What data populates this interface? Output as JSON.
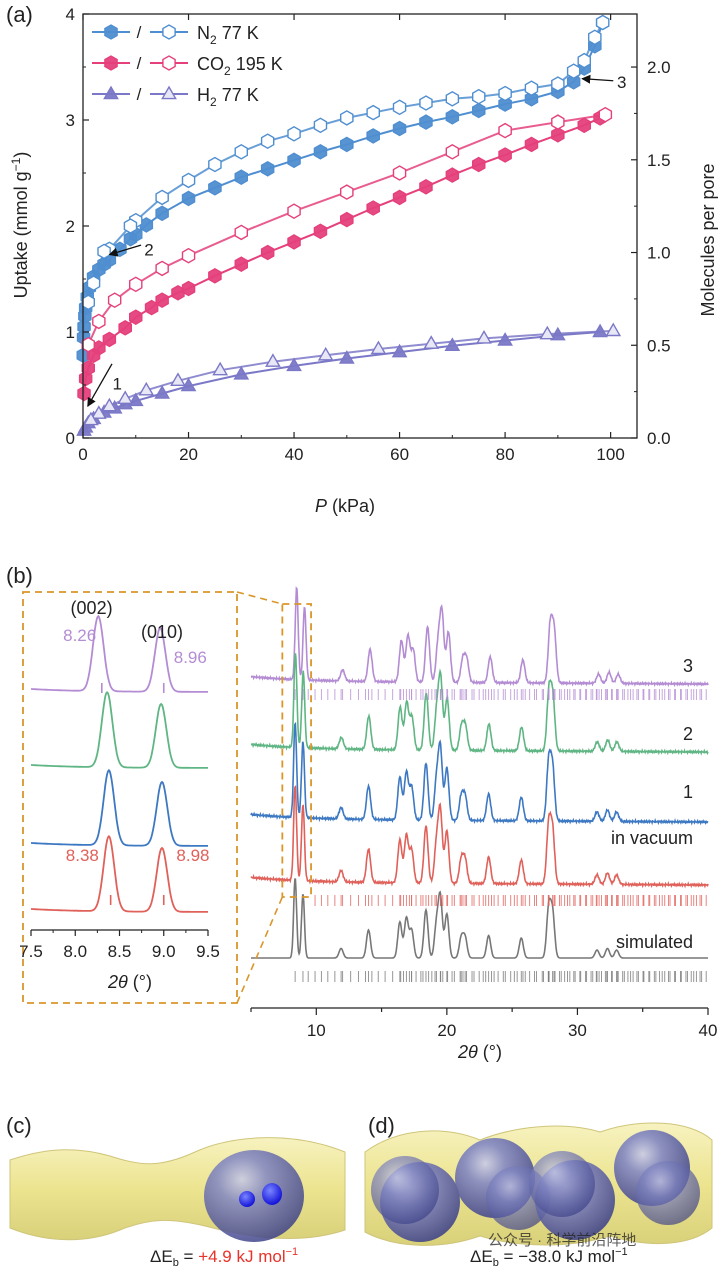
{
  "panels": {
    "a": "(a)",
    "b": "(b)",
    "c": "(c)",
    "d": "(d)"
  },
  "colors": {
    "n2": "#4f8ed0",
    "co2": "#e5407b",
    "h2": "#7b78c7",
    "inset_frame": "#d9962a",
    "trace_3": "#b48cd4",
    "trace_2": "#5fb583",
    "trace_1": "#3d78c2",
    "trace_vacuum": "#e0605a",
    "trace_sim": "#777777",
    "tunnel": "#f2ec9c",
    "sphere": "#6e74b5",
    "highlight_red": "#e8322a"
  },
  "chart_data": [
    {
      "type": "line",
      "panel": "a",
      "xlabel_italic": "P",
      "xlabel_unit": " (kPa)",
      "ylabel_left_main": "Uptake (mmol g",
      "ylabel_left_sup": "−1",
      "ylabel_left_end": ")",
      "ylabel_right": "Molecules per pore",
      "xlim": [
        0,
        105
      ],
      "ylim": [
        0,
        4
      ],
      "y2lim": [
        0,
        2.286
      ],
      "xticks": [
        0,
        20,
        40,
        60,
        80,
        100
      ],
      "yticks": [
        0,
        1,
        2,
        3,
        4
      ],
      "y2ticks": [
        "0.0",
        "0.5",
        "1.0",
        "1.5",
        "2.0"
      ],
      "y2tick_values": [
        0,
        0.5,
        1.0,
        1.5,
        2.0
      ],
      "legend": [
        {
          "sep": "/",
          "main": "N",
          "sub": "2",
          "rest": " 77 K",
          "color_key": "n2",
          "marker": "hexagon"
        },
        {
          "sep": "/",
          "main": "CO",
          "sub": "2",
          "rest": " 195 K",
          "color_key": "co2",
          "marker": "hexagon"
        },
        {
          "sep": "/",
          "main": "H",
          "sub": "2",
          "rest": " 77 K",
          "color_key": "h2",
          "marker": "triangle"
        }
      ],
      "series": [
        {
          "name": "N2 77 K adsorption",
          "color_key": "n2",
          "filled": true,
          "marker": "hexagon",
          "x": [
            0.05,
            0.1,
            0.2,
            0.35,
            0.5,
            0.8,
            1.2,
            2,
            3,
            4,
            5,
            7,
            9,
            10,
            12,
            15,
            20,
            25,
            30,
            35,
            40,
            45,
            50,
            55,
            60,
            65,
            70,
            75,
            80,
            85,
            90,
            93,
            95,
            97,
            98.5
          ],
          "y": [
            0.78,
            0.95,
            1.05,
            1.15,
            1.23,
            1.33,
            1.42,
            1.52,
            1.59,
            1.64,
            1.68,
            1.78,
            1.88,
            1.92,
            2.01,
            2.12,
            2.26,
            2.36,
            2.46,
            2.54,
            2.62,
            2.7,
            2.77,
            2.85,
            2.92,
            2.98,
            3.03,
            3.09,
            3.15,
            3.2,
            3.27,
            3.36,
            3.49,
            3.7,
            3.92
          ]
        },
        {
          "name": "N2 77 K desorption",
          "color_key": "n2",
          "filled": false,
          "marker": "hexagon",
          "x": [
            98.5,
            97,
            95,
            93,
            90,
            85,
            80,
            75,
            70,
            65,
            60,
            55,
            50,
            45,
            40,
            35,
            30,
            25,
            20,
            15,
            10,
            9,
            5,
            4,
            2,
            1
          ],
          "y": [
            3.92,
            3.78,
            3.56,
            3.46,
            3.34,
            3.3,
            3.25,
            3.22,
            3.2,
            3.16,
            3.12,
            3.07,
            3.02,
            2.95,
            2.87,
            2.8,
            2.7,
            2.58,
            2.43,
            2.27,
            2.05,
            2.0,
            1.78,
            1.76,
            1.46,
            1.28
          ]
        },
        {
          "name": "CO2 195 K adsorption",
          "color_key": "co2",
          "filled": true,
          "marker": "hexagon",
          "x": [
            0.2,
            0.5,
            1,
            2,
            3,
            5,
            8,
            10,
            13,
            15,
            18,
            20,
            25,
            30,
            35,
            40,
            45,
            50,
            55,
            60,
            65,
            70,
            75,
            80,
            85,
            90,
            95,
            98
          ],
          "y": [
            0.42,
            0.56,
            0.66,
            0.78,
            0.85,
            0.93,
            1.04,
            1.14,
            1.23,
            1.3,
            1.37,
            1.41,
            1.53,
            1.64,
            1.75,
            1.85,
            1.95,
            2.06,
            2.17,
            2.27,
            2.37,
            2.48,
            2.58,
            2.67,
            2.77,
            2.86,
            2.95,
            3.02
          ]
        },
        {
          "name": "CO2 195 K desorption",
          "color_key": "co2",
          "filled": false,
          "marker": "hexagon",
          "x": [
            99,
            90,
            80,
            70,
            60,
            50,
            40,
            30,
            20,
            15,
            10,
            6,
            3,
            1
          ],
          "y": [
            3.05,
            2.98,
            2.9,
            2.7,
            2.5,
            2.32,
            2.14,
            1.94,
            1.72,
            1.6,
            1.45,
            1.3,
            1.1,
            0.88
          ]
        },
        {
          "name": "H2 77 K adsorption",
          "color_key": "h2",
          "filled": true,
          "marker": "triangle",
          "x": [
            0.2,
            0.5,
            1,
            2,
            4,
            6,
            8,
            10,
            15,
            20,
            30,
            40,
            50,
            60,
            70,
            80,
            90,
            98
          ],
          "y": [
            0.07,
            0.1,
            0.14,
            0.18,
            0.24,
            0.28,
            0.32,
            0.35,
            0.42,
            0.49,
            0.6,
            0.68,
            0.75,
            0.81,
            0.87,
            0.92,
            0.97,
            1.0
          ]
        },
        {
          "name": "H2 77 K desorption",
          "color_key": "h2",
          "filled": false,
          "marker": "triangle",
          "x": [
            100.5,
            88,
            76,
            66,
            56,
            46,
            36,
            26,
            18,
            12,
            8,
            5,
            3,
            1.5
          ],
          "y": [
            1.01,
            0.98,
            0.94,
            0.89,
            0.84,
            0.78,
            0.72,
            0.64,
            0.54,
            0.45,
            0.37,
            0.3,
            0.23,
            0.17
          ]
        }
      ],
      "annotations": [
        {
          "text": "1",
          "x": 1,
          "y": 0.28
        },
        {
          "text": "2",
          "x": 4.5,
          "y": 1.75
        },
        {
          "text": "3",
          "x": 94.5,
          "y": 3.38
        }
      ]
    },
    {
      "type": "line",
      "panel": "b-main",
      "xlabel_italic": "2θ",
      "xlabel_unit": "  (°)",
      "xlim": [
        5,
        40
      ],
      "xticks": [
        10,
        20,
        30,
        40
      ],
      "traces": [
        {
          "name": "3",
          "color_key": "trace_3",
          "shift": 0
        },
        {
          "name": "2",
          "color_key": "trace_2",
          "shift": 0.1
        },
        {
          "name": "1",
          "color_key": "trace_1",
          "shift": 0.12
        },
        {
          "name": "in vacuum",
          "color_key": "trace_vacuum",
          "shift": 0.12
        },
        {
          "name": "simulated",
          "color_key": "trace_sim",
          "shift": 0.12
        }
      ],
      "peaks_2theta": [
        8.38,
        8.98,
        11.9,
        14.0,
        16.4,
        16.9,
        17.3,
        18.4,
        19.2,
        19.5,
        20.0,
        21.1,
        21.4,
        23.2,
        25.7,
        27.8,
        28.1,
        31.5,
        32.3,
        33.0
      ]
    },
    {
      "type": "line",
      "panel": "b-inset",
      "xlabel_italic": "2θ",
      "xlabel_unit": "  (°)",
      "xlim": [
        7.5,
        9.5
      ],
      "xticks": [
        "7.5",
        "8.0",
        "8.5",
        "9.0",
        "9.5"
      ],
      "xtick_values": [
        7.5,
        8.0,
        8.5,
        9.0,
        9.5
      ],
      "peak_labels": [
        {
          "text": "(002)",
          "x": 8.32
        },
        {
          "text": "(010)",
          "x": 8.98
        }
      ],
      "peaks": [
        {
          "trace": "3",
          "p1": 8.26,
          "p2": 8.96,
          "label1": "8.26",
          "label2": "8.96"
        },
        {
          "trace": "2",
          "p1": 8.36,
          "p2": 8.97
        },
        {
          "trace": "1",
          "p1": 8.38,
          "p2": 8.98
        },
        {
          "trace": "in vacuum",
          "p1": 8.38,
          "p2": 8.98,
          "label1": "8.38",
          "label2": "8.98"
        }
      ]
    }
  ],
  "panel_c": {
    "eq_main": "ΔE",
    "eq_sub": "b",
    "eq_sign": " = ",
    "eq_value": "+4.9 kJ mol",
    "eq_sup": "−1"
  },
  "panel_d": {
    "eq_main": "ΔE",
    "eq_sub": "b",
    "eq_sign": " = ",
    "eq_value": "−38.0 kJ mol",
    "eq_sup": "−1"
  },
  "watermark": "公众号 · 科学前沿阵地"
}
